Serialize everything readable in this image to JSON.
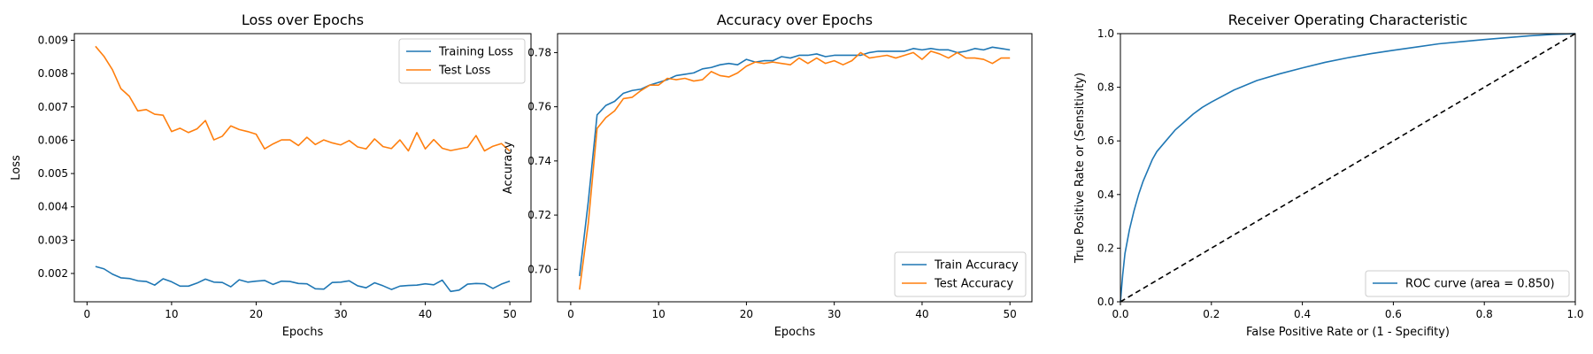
{
  "colors": {
    "blue": "#1f77b4",
    "orange": "#ff7f0e",
    "diag": "#000000"
  },
  "chart_data": [
    {
      "type": "line",
      "title": "Loss over Epochs",
      "xlabel": "Epochs",
      "ylabel": "Loss",
      "xlim": [
        -1.5,
        52.5
      ],
      "ylim": [
        0.00115,
        0.0092
      ],
      "xticks": [
        0,
        10,
        20,
        30,
        40,
        50
      ],
      "yticks": [
        0.002,
        0.003,
        0.004,
        0.005,
        0.006,
        0.007,
        0.008,
        0.009
      ],
      "xtick_labels": [
        "0",
        "10",
        "20",
        "30",
        "40",
        "50"
      ],
      "ytick_labels": [
        "0.002",
        "0.003",
        "0.004",
        "0.005",
        "0.006",
        "0.007",
        "0.008",
        "0.009"
      ],
      "grid": false,
      "legend": "upper-right",
      "x": [
        1,
        2,
        3,
        4,
        5,
        6,
        7,
        8,
        9,
        10,
        11,
        12,
        13,
        14,
        15,
        16,
        17,
        18,
        19,
        20,
        21,
        22,
        23,
        24,
        25,
        26,
        27,
        28,
        29,
        30,
        31,
        32,
        33,
        34,
        35,
        36,
        37,
        38,
        39,
        40,
        41,
        42,
        43,
        44,
        45,
        46,
        47,
        48,
        49,
        50
      ],
      "series": [
        {
          "name": "Training Loss",
          "color": "blue",
          "values": [
            0.00221,
            0.00214,
            0.00198,
            0.00187,
            0.00185,
            0.00178,
            0.00176,
            0.00165,
            0.00184,
            0.00175,
            0.00162,
            0.00162,
            0.00171,
            0.00183,
            0.00174,
            0.00173,
            0.0016,
            0.00181,
            0.00174,
            0.00177,
            0.00179,
            0.00167,
            0.00177,
            0.00176,
            0.0017,
            0.00169,
            0.00154,
            0.00153,
            0.00173,
            0.00174,
            0.00178,
            0.00163,
            0.00157,
            0.00172,
            0.00163,
            0.00152,
            0.00162,
            0.00164,
            0.00165,
            0.00169,
            0.00166,
            0.0018,
            0.00146,
            0.0015,
            0.00168,
            0.0017,
            0.00169,
            0.00155,
            0.00168,
            0.00177
          ]
        },
        {
          "name": "Test Loss",
          "color": "orange",
          "values": [
            0.00882,
            0.00852,
            0.00812,
            0.00755,
            0.00732,
            0.00688,
            0.00692,
            0.00678,
            0.00675,
            0.00626,
            0.00636,
            0.00623,
            0.00634,
            0.00659,
            0.00601,
            0.00612,
            0.00643,
            0.00632,
            0.00626,
            0.00618,
            0.00574,
            0.00589,
            0.00601,
            0.00601,
            0.00584,
            0.00609,
            0.00587,
            0.00601,
            0.00592,
            0.00586,
            0.00599,
            0.0058,
            0.00574,
            0.00604,
            0.00581,
            0.00575,
            0.00601,
            0.00568,
            0.00623,
            0.00574,
            0.00602,
            0.00576,
            0.00569,
            0.00574,
            0.00579,
            0.00614,
            0.00568,
            0.00582,
            0.0059,
            0.00567
          ]
        }
      ]
    },
    {
      "type": "line",
      "title": "Accuracy over Epochs",
      "xlabel": "Epochs",
      "ylabel": "Accuracy",
      "xlim": [
        -1.5,
        52.5
      ],
      "ylim": [
        0.688,
        0.787
      ],
      "xticks": [
        0,
        10,
        20,
        30,
        40,
        50
      ],
      "yticks": [
        0.7,
        0.72,
        0.74,
        0.76,
        0.78
      ],
      "xtick_labels": [
        "0",
        "10",
        "20",
        "30",
        "40",
        "50"
      ],
      "ytick_labels": [
        "0.70",
        "0.72",
        "0.74",
        "0.76",
        "0.78"
      ],
      "grid": false,
      "legend": "lower-right",
      "x": [
        1,
        2,
        3,
        4,
        5,
        6,
        7,
        8,
        9,
        10,
        11,
        12,
        13,
        14,
        15,
        16,
        17,
        18,
        19,
        20,
        21,
        22,
        23,
        24,
        25,
        26,
        27,
        28,
        29,
        30,
        31,
        32,
        33,
        34,
        35,
        36,
        37,
        38,
        39,
        40,
        41,
        42,
        43,
        44,
        45,
        46,
        47,
        48,
        49,
        50
      ],
      "series": [
        {
          "name": "Train Accuracy",
          "color": "blue",
          "values": [
            0.6975,
            0.725,
            0.757,
            0.7605,
            0.762,
            0.765,
            0.766,
            0.7665,
            0.768,
            0.769,
            0.77,
            0.7715,
            0.772,
            0.7725,
            0.774,
            0.7745,
            0.7755,
            0.776,
            0.7755,
            0.7775,
            0.7765,
            0.777,
            0.777,
            0.7785,
            0.778,
            0.779,
            0.779,
            0.7795,
            0.7785,
            0.779,
            0.779,
            0.779,
            0.779,
            0.78,
            0.7805,
            0.7805,
            0.7805,
            0.7805,
            0.7815,
            0.781,
            0.7815,
            0.781,
            0.781,
            0.78,
            0.7805,
            0.7815,
            0.781,
            0.782,
            0.7815,
            0.781
          ]
        },
        {
          "name": "Test Accuracy",
          "color": "orange",
          "values": [
            0.6925,
            0.717,
            0.752,
            0.756,
            0.7585,
            0.763,
            0.7635,
            0.766,
            0.768,
            0.768,
            0.7705,
            0.77,
            0.7705,
            0.7695,
            0.77,
            0.773,
            0.7715,
            0.771,
            0.7725,
            0.775,
            0.7765,
            0.776,
            0.7765,
            0.776,
            0.7755,
            0.778,
            0.776,
            0.778,
            0.776,
            0.777,
            0.7755,
            0.777,
            0.78,
            0.778,
            0.7785,
            0.779,
            0.778,
            0.779,
            0.78,
            0.7775,
            0.7805,
            0.7795,
            0.778,
            0.78,
            0.778,
            0.778,
            0.7775,
            0.776,
            0.778,
            0.778
          ]
        }
      ]
    },
    {
      "type": "line",
      "title": "Receiver Operating Characteristic",
      "xlabel": "False Positive Rate or (1 - Specifity)",
      "ylabel": "True Positive Rate or (Sensitivity)",
      "xlim": [
        0.0,
        1.0
      ],
      "ylim": [
        0.0,
        1.0
      ],
      "xticks": [
        0.0,
        0.2,
        0.4,
        0.6,
        0.8,
        1.0
      ],
      "yticks": [
        0.0,
        0.2,
        0.4,
        0.6,
        0.8,
        1.0
      ],
      "xtick_labels": [
        "0.0",
        "0.2",
        "0.4",
        "0.6",
        "0.8",
        "1.0"
      ],
      "ytick_labels": [
        "0.0",
        "0.2",
        "0.4",
        "0.6",
        "0.8",
        "1.0"
      ],
      "grid": false,
      "legend": "lower-right",
      "series": [
        {
          "name": "ROC curve (area = 0.850)",
          "color": "blue",
          "x": [
            0.0,
            0.005,
            0.01,
            0.02,
            0.03,
            0.04,
            0.05,
            0.06,
            0.07,
            0.08,
            0.1,
            0.12,
            0.14,
            0.16,
            0.18,
            0.2,
            0.25,
            0.3,
            0.35,
            0.4,
            0.45,
            0.5,
            0.55,
            0.6,
            0.65,
            0.7,
            0.75,
            0.8,
            0.85,
            0.9,
            0.95,
            1.0
          ],
          "values": [
            0.0,
            0.1,
            0.18,
            0.27,
            0.34,
            0.4,
            0.45,
            0.49,
            0.53,
            0.56,
            0.6,
            0.64,
            0.67,
            0.7,
            0.725,
            0.745,
            0.79,
            0.825,
            0.85,
            0.872,
            0.893,
            0.91,
            0.925,
            0.938,
            0.95,
            0.962,
            0.97,
            0.978,
            0.985,
            0.992,
            0.997,
            1.0
          ]
        },
        {
          "name": "",
          "color": "diag",
          "dashed": true,
          "x": [
            0.0,
            1.0
          ],
          "values": [
            0.0,
            1.0
          ]
        }
      ]
    }
  ]
}
